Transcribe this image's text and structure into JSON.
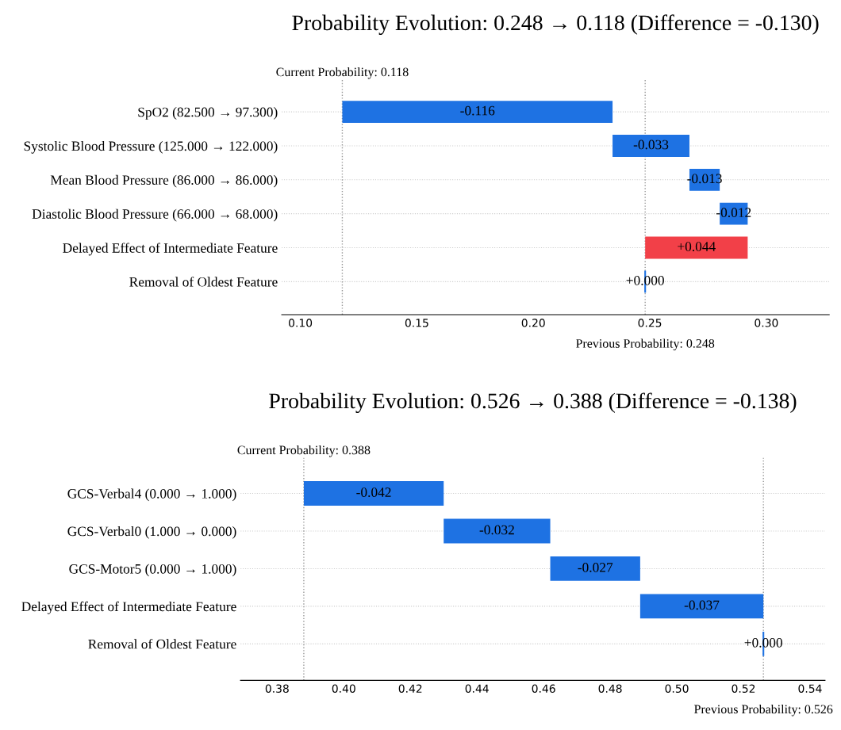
{
  "chart_data": [
    {
      "type": "bar",
      "orientation": "horizontal",
      "title": "Probability Evolution: 0.248 → 0.118 (Difference = -0.130)",
      "categories": [
        "SpO2 (82.500 → 97.300)",
        "Systolic Blood Pressure (125.000 → 122.000)",
        "Mean Blood Pressure (86.000 → 86.000)",
        "Diastolic Blood Pressure (66.000 → 68.000)",
        "Delayed Effect of Intermediate Feature",
        "Removal of Oldest Feature"
      ],
      "values": [
        -0.116,
        -0.033,
        -0.013,
        -0.012,
        0.044,
        0.0
      ],
      "base": [
        0.234,
        0.267,
        0.28,
        0.292,
        0.248,
        0.248
      ],
      "colors": [
        "#1e72e3",
        "#1e72e3",
        "#1e72e3",
        "#1e72e3",
        "#f24048",
        "#1e72e3"
      ],
      "value_labels": [
        "-0.116",
        "-0.033",
        "-0.013",
        "-0.012",
        "+0.044",
        "+0.000"
      ],
      "xlim": [
        0.092,
        0.327
      ],
      "xticks": [
        {
          "value": 0.1,
          "label": "0.10"
        },
        0.15,
        {
          "value": 0.2,
          "label": "0.20"
        },
        0.25,
        {
          "value": 0.3,
          "label": "0.30"
        }
      ],
      "grid": "y",
      "ref_lines": [
        {
          "axis": "x",
          "value": 0.118,
          "label": "Current Probability: 0.118",
          "color": "#999999",
          "line_style": "dotted"
        },
        {
          "axis": "x",
          "value": 0.248,
          "label": "Previous Probability: 0.248",
          "color": "#999999",
          "line_style": "dotted"
        }
      ]
    },
    {
      "type": "bar",
      "orientation": "horizontal",
      "title": "Probability Evolution: 0.526 → 0.388 (Difference = -0.138)",
      "categories": [
        "GCS-Verbal4 (0.000 → 1.000)",
        "GCS-Verbal0 (1.000 → 0.000)",
        "GCS-Motor5 (0.000 → 1.000)",
        "Delayed Effect of Intermediate Feature",
        "Removal of Oldest Feature"
      ],
      "values": [
        -0.042,
        -0.032,
        -0.027,
        -0.037,
        0.0
      ],
      "base": [
        0.43,
        0.462,
        0.489,
        0.526,
        0.526
      ],
      "colors": [
        "#1e72e3",
        "#1e72e3",
        "#1e72e3",
        "#1e72e3",
        "#1e72e3"
      ],
      "value_labels": [
        "-0.042",
        "-0.032",
        "-0.027",
        "-0.037",
        "+0.000"
      ],
      "xlim": [
        0.369,
        0.5445
      ],
      "xticks": [
        0.38,
        {
          "value": 0.4,
          "label": "0.40"
        },
        0.42,
        0.44,
        0.46,
        0.48,
        {
          "value": 0.5,
          "label": "0.50"
        },
        0.52,
        0.54
      ],
      "grid": "y",
      "ref_lines": [
        {
          "axis": "x",
          "value": 0.388,
          "label": "Current Probability: 0.388",
          "color": "#999999",
          "line_style": "dotted"
        },
        {
          "axis": "x",
          "value": 0.526,
          "label": "Previous Probability: 0.526",
          "color": "#999999",
          "line_style": "dotted"
        }
      ]
    }
  ]
}
